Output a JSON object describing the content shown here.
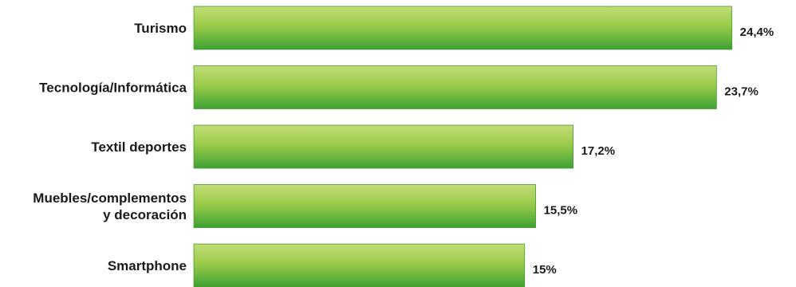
{
  "chart_data": {
    "type": "bar",
    "orientation": "horizontal",
    "categories": [
      [
        "Turismo"
      ],
      [
        "Tecnología/Informática"
      ],
      [
        "Textil deportes"
      ],
      [
        "Muebles/complementos",
        "y decoración"
      ],
      [
        "Smartphone"
      ]
    ],
    "values": [
      24.4,
      23.7,
      17.2,
      15.5,
      15
    ],
    "value_labels": [
      "24,4%",
      "23,7%",
      "17,2%",
      "15,5%",
      "15%"
    ],
    "unit": "%",
    "grid": false,
    "legend": "none",
    "colors": {
      "bar_top": "#c2dc78",
      "bar_mid": "#9acb4a",
      "bar_bottom": "#3ea233",
      "bar_stroke": "#4a9a2e",
      "text": "#1a1a1a"
    }
  }
}
